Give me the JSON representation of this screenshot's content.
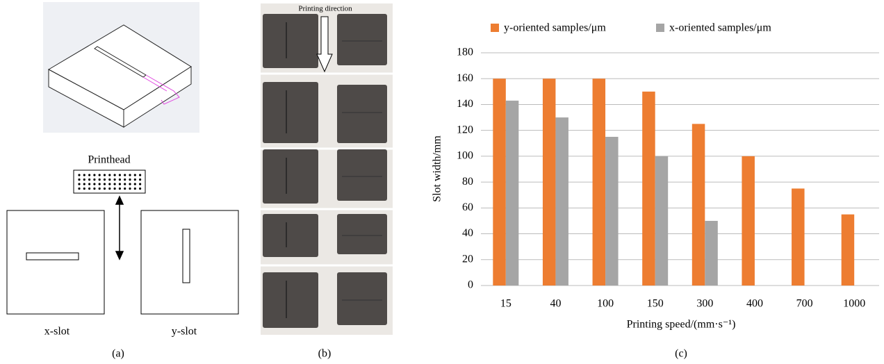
{
  "panel_a": {
    "printhead": "Printhead",
    "x_slot": "x-slot",
    "y_slot": "y-slot",
    "label": "(a)"
  },
  "panel_b": {
    "direction": "Printing direction",
    "label": "(b)"
  },
  "panel_c": {
    "label": "(c)"
  },
  "chart_data": {
    "type": "bar",
    "x_label": "Printing speed/(mm·s⁻¹)",
    "y_label": "Slot width/mm",
    "categories": [
      "15",
      "40",
      "100",
      "150",
      "300",
      "400",
      "700",
      "1000"
    ],
    "series": [
      {
        "name": "y-oriented samples/μm",
        "color": "#ed7d31",
        "values": [
          160,
          160,
          160,
          150,
          125,
          100,
          75,
          55
        ]
      },
      {
        "name": "x-oriented samples/μm",
        "color": "#a5a5a5",
        "values": [
          143,
          130,
          115,
          100,
          50,
          null,
          null,
          null
        ]
      }
    ],
    "ylim": [
      0,
      180
    ],
    "yticks": [
      0,
      20,
      40,
      60,
      80,
      100,
      120,
      140,
      160,
      180
    ],
    "grid": true,
    "legend": "top"
  }
}
